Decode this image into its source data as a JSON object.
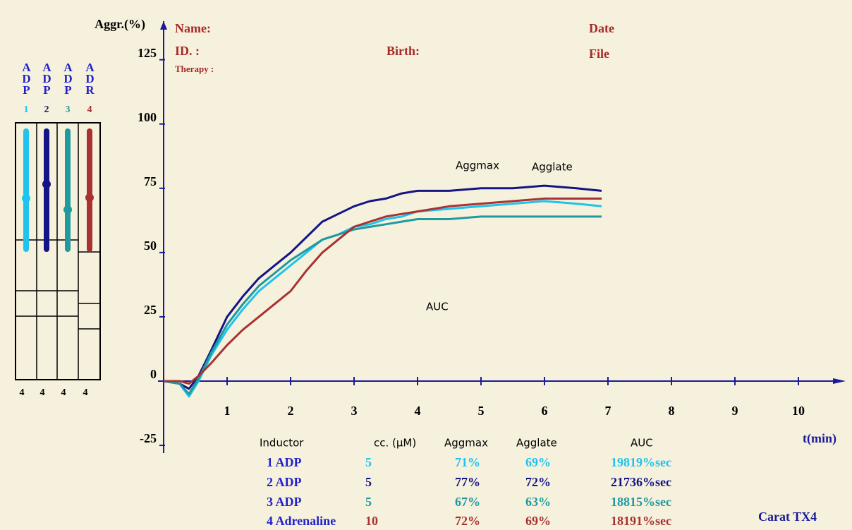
{
  "header": {
    "name": "Name:",
    "id": "ID. :",
    "therapy": "Therapy :",
    "birth": "Birth:",
    "date": "Date",
    "file": "File"
  },
  "channels": [
    {
      "label": "ADP",
      "number": "1",
      "count": 4,
      "color": "#1ec3ee"
    },
    {
      "label": "ADP",
      "number": "2",
      "count": 4,
      "color": "#141486"
    },
    {
      "label": "ADP",
      "number": "3",
      "count": 4,
      "color": "#1f9a9f"
    },
    {
      "label": "ADR",
      "number": "4",
      "count": 4,
      "color": "#a83232"
    }
  ],
  "chart_data": {
    "type": "line",
    "y_label": "Aggr.(%)",
    "x_label": "t(min)",
    "annotations": [
      "Aggmax",
      "Agglate",
      "AUC"
    ],
    "x": [
      0,
      0.25,
      0.4,
      0.55,
      0.75,
      1,
      1.25,
      1.5,
      1.75,
      2,
      2.25,
      2.5,
      2.75,
      3,
      3.25,
      3.5,
      3.75,
      4,
      4.5,
      5,
      5.5,
      6,
      6.5,
      6.9
    ],
    "series": [
      {
        "name": "1 ADP",
        "color": "#1ec3ee",
        "values": [
          0,
          -1,
          -6,
          0,
          10,
          20,
          28,
          35,
          40,
          45,
          50,
          55,
          57,
          60,
          61,
          63,
          64,
          66,
          67,
          68,
          69,
          70,
          69,
          68
        ]
      },
      {
        "name": "2 ADP",
        "color": "#141486",
        "values": [
          0,
          -1,
          -3,
          2,
          12,
          25,
          33,
          40,
          45,
          50,
          56,
          62,
          65,
          68,
          70,
          71,
          73,
          74,
          74,
          75,
          75,
          76,
          75,
          74
        ]
      },
      {
        "name": "3 ADP",
        "color": "#1f9a9f",
        "values": [
          0,
          -1,
          -5,
          1,
          11,
          22,
          30,
          37,
          42,
          47,
          51,
          55,
          57,
          59,
          60,
          61,
          62,
          63,
          63,
          64,
          64,
          64,
          64,
          64
        ]
      },
      {
        "name": "4 Adrenaline",
        "color": "#a83232",
        "values": [
          0,
          0,
          -1,
          2,
          7,
          14,
          20,
          25,
          30,
          35,
          43,
          50,
          55,
          60,
          62,
          64,
          65,
          66,
          68,
          69,
          70,
          71,
          71,
          71
        ]
      }
    ],
    "xlim": [
      0,
      10.7
    ],
    "ylim": [
      -28,
      140
    ],
    "xticks": [
      1,
      2,
      3,
      4,
      5,
      6,
      7,
      8,
      9,
      10
    ],
    "yticks": [
      -25,
      0,
      25,
      50,
      75,
      100,
      125
    ]
  },
  "table": {
    "header": [
      "Inductor",
      "cc. (µM)",
      "Aggmax",
      "Agglate",
      "AUC"
    ],
    "rows": [
      [
        "1 ADP",
        5,
        "71%",
        "69%",
        "19819%sec"
      ],
      [
        "2 ADP",
        5,
        "77%",
        "72%",
        "21736%sec"
      ],
      [
        "3 ADP",
        5,
        "67%",
        "63%",
        "18815%sec"
      ],
      [
        "4 Adrenaline",
        10,
        "72%",
        "69%",
        "18191%sec"
      ]
    ]
  },
  "footer": "Carat TX4"
}
